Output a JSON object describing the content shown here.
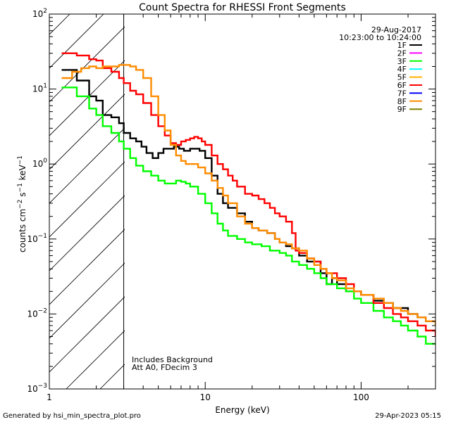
{
  "chart_data": {
    "type": "line",
    "title": "Count Spectra for RHESSI Front Segments",
    "xlabel": "Energy (keV)",
    "ylabel": "counts cm",
    "ylabel_parts": [
      "counts cm",
      "−2",
      " s",
      "−1",
      " keV",
      "−1"
    ],
    "x_scale": "log",
    "y_scale": "log",
    "xlim": [
      1,
      300
    ],
    "ylim": [
      0.001,
      100
    ],
    "x_ticks": [
      {
        "value": 1,
        "label": "1"
      },
      {
        "value": 10,
        "label": "10"
      },
      {
        "value": 100,
        "label": "100"
      }
    ],
    "y_ticks": [
      {
        "value": 0.001,
        "base": "10",
        "exp": "−3"
      },
      {
        "value": 0.01,
        "base": "10",
        "exp": "−2"
      },
      {
        "value": 0.1,
        "base": "10",
        "exp": "−1"
      },
      {
        "value": 1,
        "base": "10",
        "exp": "0"
      },
      {
        "value": 10,
        "base": "10",
        "exp": "1"
      },
      {
        "value": 100,
        "base": "10",
        "exp": "2"
      }
    ],
    "date": "29-Aug-2017",
    "time_range": "10:23:00 to 10:24:00",
    "hatched_region": [
      1,
      3
    ],
    "annotations": [
      "Includes Background",
      "Att A0, FDecim 3"
    ],
    "legend": [
      {
        "name": "1F",
        "color": "#000000"
      },
      {
        "name": "2F",
        "color": "#ff00ff"
      },
      {
        "name": "3F",
        "color": "#00ff00"
      },
      {
        "name": "4F",
        "color": "#00ffff"
      },
      {
        "name": "5F",
        "color": "#ffb000"
      },
      {
        "name": "6F",
        "color": "#ff0000"
      },
      {
        "name": "7F",
        "color": "#0000ff"
      },
      {
        "name": "8F",
        "color": "#ff8c00"
      },
      {
        "name": "9F",
        "color": "#808000"
      }
    ],
    "series": [
      {
        "name": "1F",
        "color": "#000000",
        "points": [
          [
            1.2,
            18
          ],
          [
            1.5,
            13
          ],
          [
            1.8,
            8
          ],
          [
            2.0,
            7
          ],
          [
            2.2,
            4.5
          ],
          [
            2.5,
            4.2
          ],
          [
            2.8,
            3.5
          ],
          [
            3.0,
            2.6
          ],
          [
            3.3,
            2.2
          ],
          [
            3.6,
            2.0
          ],
          [
            3.9,
            1.7
          ],
          [
            4.2,
            1.4
          ],
          [
            4.6,
            1.2
          ],
          [
            5.0,
            1.4
          ],
          [
            5.4,
            1.6
          ],
          [
            5.8,
            1.6
          ],
          [
            6.3,
            1.7
          ],
          [
            6.8,
            1.6
          ],
          [
            7.3,
            1.5
          ],
          [
            8.0,
            1.6
          ],
          [
            8.6,
            1.6
          ],
          [
            9.2,
            1.5
          ],
          [
            10.0,
            1.2
          ],
          [
            11.0,
            0.7
          ],
          [
            12.0,
            0.4
          ],
          [
            13.0,
            0.3
          ],
          [
            14.0,
            0.26
          ],
          [
            16.0,
            0.22
          ],
          [
            18.0,
            0.17
          ],
          [
            20.0,
            0.14
          ],
          [
            22.0,
            0.13
          ],
          [
            25.0,
            0.12
          ],
          [
            28.0,
            0.1
          ],
          [
            30.0,
            0.09
          ],
          [
            33.0,
            0.08
          ],
          [
            36.0,
            0.075
          ],
          [
            40.0,
            0.06
          ],
          [
            45.0,
            0.05
          ],
          [
            50.0,
            0.05
          ],
          [
            55.0,
            0.035
          ],
          [
            60.0,
            0.025
          ],
          [
            65.0,
            0.03
          ],
          [
            70.0,
            0.025
          ],
          [
            80.0,
            0.02
          ],
          [
            90.0,
            0.02
          ],
          [
            100.0,
            0.018
          ],
          [
            120.0,
            0.015
          ],
          [
            140.0,
            0.014
          ],
          [
            160.0,
            0.012
          ],
          [
            180.0,
            0.012
          ],
          [
            200.0,
            0.01
          ],
          [
            230.0,
            0.009
          ],
          [
            260.0,
            0.008
          ],
          [
            300.0,
            0.008
          ]
        ]
      },
      {
        "name": "3F",
        "color": "#00ff00",
        "points": [
          [
            1.2,
            10.5
          ],
          [
            1.5,
            8
          ],
          [
            1.8,
            5.5
          ],
          [
            2.0,
            4.5
          ],
          [
            2.2,
            3.2
          ],
          [
            2.5,
            2.6
          ],
          [
            2.8,
            2.0
          ],
          [
            3.0,
            1.6
          ],
          [
            3.3,
            1.2
          ],
          [
            3.6,
            0.95
          ],
          [
            4.0,
            0.8
          ],
          [
            4.5,
            0.7
          ],
          [
            5.0,
            0.6
          ],
          [
            5.5,
            0.55
          ],
          [
            6.0,
            0.55
          ],
          [
            6.5,
            0.6
          ],
          [
            7.0,
            0.58
          ],
          [
            7.5,
            0.55
          ],
          [
            8.0,
            0.5
          ],
          [
            9.0,
            0.4
          ],
          [
            10.0,
            0.3
          ],
          [
            11.0,
            0.22
          ],
          [
            12.0,
            0.16
          ],
          [
            13.0,
            0.13
          ],
          [
            14.0,
            0.11
          ],
          [
            16.0,
            0.1
          ],
          [
            18.0,
            0.09
          ],
          [
            20.0,
            0.085
          ],
          [
            23.0,
            0.08
          ],
          [
            26.0,
            0.07
          ],
          [
            30.0,
            0.065
          ],
          [
            33.0,
            0.06
          ],
          [
            36.0,
            0.05
          ],
          [
            40.0,
            0.045
          ],
          [
            45.0,
            0.04
          ],
          [
            50.0,
            0.035
          ],
          [
            55.0,
            0.03
          ],
          [
            60.0,
            0.025
          ],
          [
            70.0,
            0.022
          ],
          [
            80.0,
            0.02
          ],
          [
            90.0,
            0.016
          ],
          [
            100.0,
            0.014
          ],
          [
            120.0,
            0.011
          ],
          [
            140.0,
            0.009
          ],
          [
            160.0,
            0.008
          ],
          [
            180.0,
            0.007
          ],
          [
            200.0,
            0.006
          ],
          [
            230.0,
            0.005
          ],
          [
            260.0,
            0.004
          ],
          [
            300.0,
            0.004
          ]
        ]
      },
      {
        "name": "6F",
        "color": "#ff0000",
        "points": [
          [
            1.2,
            30
          ],
          [
            1.5,
            28
          ],
          [
            1.8,
            25
          ],
          [
            2.0,
            24
          ],
          [
            2.2,
            19
          ],
          [
            2.5,
            17
          ],
          [
            2.8,
            14
          ],
          [
            3.0,
            12
          ],
          [
            3.3,
            9.5
          ],
          [
            3.6,
            8.5
          ],
          [
            4.0,
            6.5
          ],
          [
            4.5,
            4.5
          ],
          [
            5.0,
            3.2
          ],
          [
            5.5,
            2.4
          ],
          [
            6.0,
            1.9
          ],
          [
            6.5,
            1.8
          ],
          [
            7.0,
            2.0
          ],
          [
            7.5,
            2.1
          ],
          [
            8.0,
            2.2
          ],
          [
            8.5,
            2.3
          ],
          [
            9.0,
            2.2
          ],
          [
            9.5,
            2.0
          ],
          [
            10.0,
            1.8
          ],
          [
            11.0,
            1.3
          ],
          [
            12.0,
            1.0
          ],
          [
            13.0,
            0.85
          ],
          [
            14.0,
            0.7
          ],
          [
            15.0,
            0.6
          ],
          [
            16.0,
            0.5
          ],
          [
            18.0,
            0.4
          ],
          [
            20.0,
            0.38
          ],
          [
            22.0,
            0.34
          ],
          [
            24.0,
            0.3
          ],
          [
            26.0,
            0.26
          ],
          [
            28.0,
            0.22
          ],
          [
            30.0,
            0.2
          ],
          [
            33.0,
            0.17
          ],
          [
            36.0,
            0.12
          ],
          [
            38.0,
            0.07
          ],
          [
            40.0,
            0.065
          ],
          [
            45.0,
            0.055
          ],
          [
            50.0,
            0.05
          ],
          [
            55.0,
            0.04
          ],
          [
            60.0,
            0.035
          ],
          [
            70.0,
            0.03
          ],
          [
            80.0,
            0.025
          ],
          [
            90.0,
            0.02
          ],
          [
            100.0,
            0.018
          ],
          [
            120.0,
            0.014
          ],
          [
            140.0,
            0.012
          ],
          [
            160.0,
            0.01
          ],
          [
            180.0,
            0.009
          ],
          [
            200.0,
            0.008
          ],
          [
            230.0,
            0.007
          ],
          [
            260.0,
            0.006
          ],
          [
            300.0,
            0.005
          ]
        ]
      },
      {
        "name": "8F",
        "color": "#ff8c00",
        "points": [
          [
            1.2,
            14
          ],
          [
            1.4,
            17
          ],
          [
            1.6,
            19
          ],
          [
            1.8,
            20
          ],
          [
            2.0,
            19
          ],
          [
            2.2,
            20
          ],
          [
            2.5,
            20
          ],
          [
            2.8,
            21
          ],
          [
            3.0,
            21
          ],
          [
            3.3,
            20
          ],
          [
            3.6,
            18
          ],
          [
            4.0,
            14
          ],
          [
            4.5,
            8
          ],
          [
            5.0,
            4.5
          ],
          [
            5.5,
            2.8
          ],
          [
            6.0,
            1.8
          ],
          [
            6.5,
            1.3
          ],
          [
            7.0,
            1.1
          ],
          [
            7.5,
            1.0
          ],
          [
            8.0,
            1.0
          ],
          [
            9.0,
            0.9
          ],
          [
            10.0,
            0.75
          ],
          [
            11.0,
            0.6
          ],
          [
            12.0,
            0.48
          ],
          [
            13.0,
            0.38
          ],
          [
            14.0,
            0.3
          ],
          [
            16.0,
            0.2
          ],
          [
            18.0,
            0.16
          ],
          [
            20.0,
            0.14
          ],
          [
            22.0,
            0.13
          ],
          [
            25.0,
            0.12
          ],
          [
            28.0,
            0.1
          ],
          [
            30.0,
            0.09
          ],
          [
            33.0,
            0.085
          ],
          [
            36.0,
            0.075
          ],
          [
            40.0,
            0.07
          ],
          [
            45.0,
            0.055
          ],
          [
            50.0,
            0.045
          ],
          [
            55.0,
            0.04
          ],
          [
            60.0,
            0.035
          ],
          [
            65.0,
            0.03
          ],
          [
            70.0,
            0.028
          ],
          [
            80.0,
            0.022
          ],
          [
            90.0,
            0.02
          ],
          [
            100.0,
            0.018
          ],
          [
            120.0,
            0.016
          ],
          [
            140.0,
            0.014
          ],
          [
            160.0,
            0.012
          ],
          [
            180.0,
            0.011
          ],
          [
            200.0,
            0.01
          ],
          [
            230.0,
            0.009
          ],
          [
            260.0,
            0.008
          ],
          [
            300.0,
            0.007
          ]
        ]
      }
    ]
  },
  "footer": {
    "generated_by": "Generated by hsi_min_spectra_plot.pro",
    "timestamp": "29-Apr-2023 05:15"
  }
}
